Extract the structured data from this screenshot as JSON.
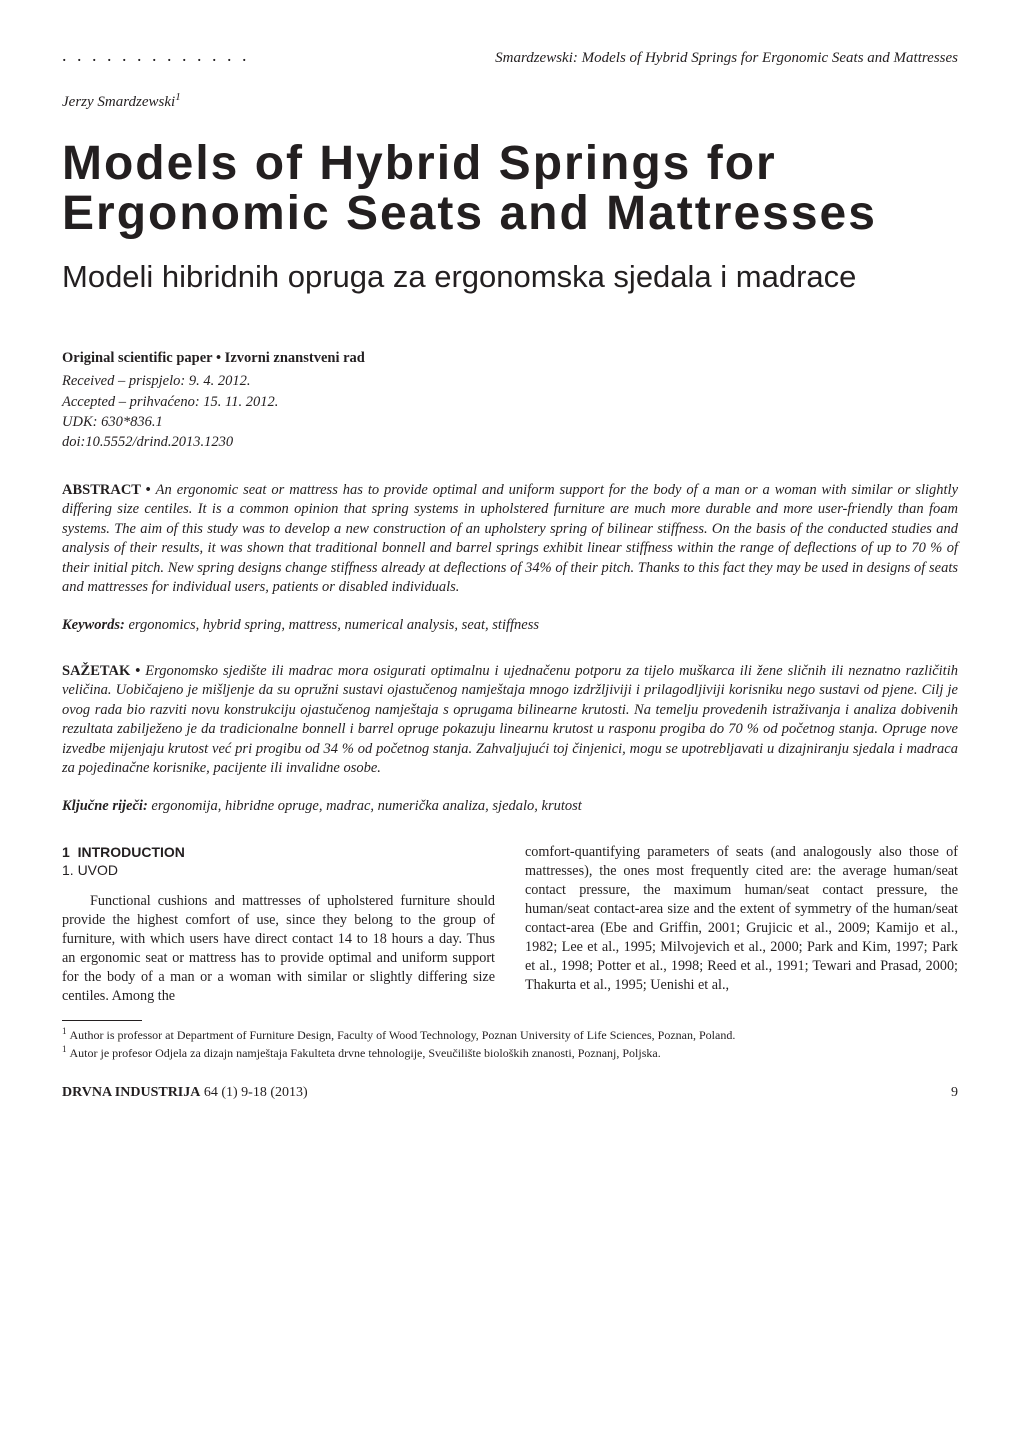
{
  "running_head": {
    "dots": ". . . . . . . . . . . . .",
    "text": "Smardzewski: Models of Hybrid Springs for Ergonomic Seats and Mattresses"
  },
  "author": {
    "name": "Jerzy Smardzewski",
    "affil_mark": "1"
  },
  "title_en": "Models of Hybrid Springs for Ergonomic Seats and Mattresses",
  "title_hr": "Modeli hibridnih opruga za ergonomska sjedala i madrace",
  "paper_type": "Original scientific paper • Izvorni znanstveni rad",
  "meta": {
    "received": "Received – prispjelo: 9. 4. 2012.",
    "accepted": "Accepted – prihvaćeno: 15. 11. 2012.",
    "udk": "UDK: 630*836.1",
    "doi": "doi:10.5552/drind.2013.1230"
  },
  "abstract_en": {
    "label": "ABSTRACT • ",
    "text": "An ergonomic seat or mattress has to provide optimal and uniform support for the body of a man or a woman with similar or slightly differing size centiles. It is a common opinion that spring systems in upholstered furniture are much more durable and more user-friendly than foam systems. The aim of this study was to develop a new construction of an upholstery spring of bilinear stiffness. On the basis of the conducted studies and analysis of their results, it was shown that traditional bonnell and barrel springs exhibit linear stiffness within the range of deflections of up to 70 % of their initial pitch. New spring designs change stiffness already at deflections of 34% of their pitch. Thanks to this fact they may be used in designs of seats and mattresses for individual users, patients or disabled individuals."
  },
  "keywords_en": {
    "label": "Keywords: ",
    "text": "ergonomics, hybrid spring, mattress, numerical analysis, seat, stiffness"
  },
  "abstract_hr": {
    "label": "SAŽETAK • ",
    "text": "Ergonomsko sjedište ili madrac mora osigurati optimalnu i ujednačenu potporu za tijelo muškarca ili žene sličnih ili neznatno različitih veličina. Uobičajeno je mišljenje da su opružni sustavi ojastučenog namještaja mnogo izdržljiviji i prilagodljiviji korisniku nego sustavi od pjene. Cilj je ovog rada bio razviti novu konstrukciju ojastučenog namještaja s oprugama bilinearne krutosti. Na temelju provedenih istraživanja i analiza dobivenih rezultata zabilježeno je da tradicionalne bonnell i barrel opruge pokazuju linearnu krutost u rasponu progiba do 70 % od početnog stanja. Opruge nove izvedbe mijenjaju krutost već pri progibu od 34 % od početnog stanja. Zahvaljujući toj činjenici, mogu se upotrebljavati u dizajniranju sjedala i madraca za pojedinačne korisnike, pacijente ili invalidne osobe."
  },
  "keywords_hr": {
    "label": "Ključne riječi: ",
    "text": "ergonomija, hibridne opruge, madrac, numerička analiza, sjedalo, krutost"
  },
  "section": {
    "num": "1",
    "head_en": "INTRODUCTION",
    "head_hr": "1. UVOD"
  },
  "body": {
    "col1": "Functional cushions and mattresses of upholstered furniture should provide the highest comfort of use, since they belong to the group of furniture, with which users have direct contact 14 to 18 hours a day. Thus an ergonomic seat or mattress has to provide optimal and uniform support for the body of a man or a woman with similar or slightly differing size centiles. Among the",
    "col2": "comfort-quantifying parameters of seats (and analogously also those of mattresses), the ones most frequently cited are: the average human/seat contact pressure, the maximum human/seat contact pressure, the human/seat contact-area size and the extent of symmetry of the human/seat contact-area (Ebe and Griffin, 2001; Grujicic et al., 2009; Kamijo et al., 1982; Lee et al., 1995; Milvojevich et al., 2000; Park and Kim, 1997; Park et al., 1998; Potter et al., 1998; Reed et al., 1991; Tewari and Prasad, 2000; Thakurta et al., 1995; Uenishi et al.,"
  },
  "footnotes": {
    "f1": "Author is professor at Department of Furniture Design, Faculty of Wood Technology, Poznan University of Life Sciences, Poznan, Poland.",
    "f2": "Autor je profesor Odjela za dizajn namještaja Fakulteta drvne tehnologije, Sveučilište bioloških znanosti, Poznanj, Poljska."
  },
  "footer": {
    "journal": "DRVNA INDUSTRIJA",
    "issue": "  64 (1) 9-18 (2013)",
    "page": "9"
  },
  "colors": {
    "text": "#231f20",
    "background": "#ffffff"
  },
  "typography": {
    "body_pt": 10.5,
    "title_en_pt": 36,
    "title_hr_pt": 23,
    "footnote_pt": 9
  }
}
